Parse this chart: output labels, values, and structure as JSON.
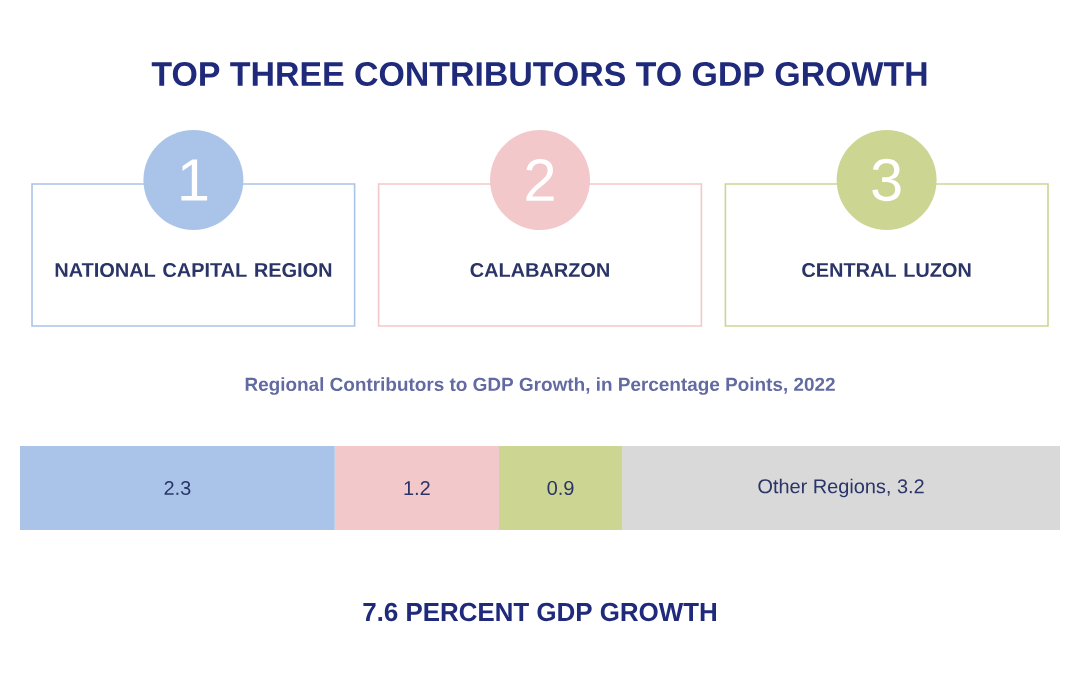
{
  "chart_data": {
    "type": "bar",
    "orientation": "horizontal",
    "stacked": true,
    "title": "TOP THREE CONTRIBUTORS TO GDP GROWTH",
    "subtitle": "Regional Contributors to GDP Growth, in Percentage Points, 2022",
    "annotations": [
      "1",
      "NATIONAL CAPITAL REGION",
      "2",
      "CALABARZON",
      "3",
      "CENTRAL LUZON",
      "7.6 PERCENT GDP GROWTH"
    ],
    "categories": [
      null
    ],
    "series": [
      {
        "color": "#a9c4e8",
        "values": [
          2.3
        ],
        "value_labels": [
          "2.3"
        ]
      },
      {
        "color": "#f2c8cb",
        "values": [
          1.2
        ],
        "value_labels": [
          "1.2"
        ]
      },
      {
        "color": "#cdd593",
        "values": [
          0.9
        ],
        "value_labels": [
          "0.9"
        ]
      },
      {
        "color": "#d9d9d9",
        "values": [
          3.2
        ],
        "value_labels": [
          "Other Regions, 3.2"
        ]
      }
    ]
  }
}
